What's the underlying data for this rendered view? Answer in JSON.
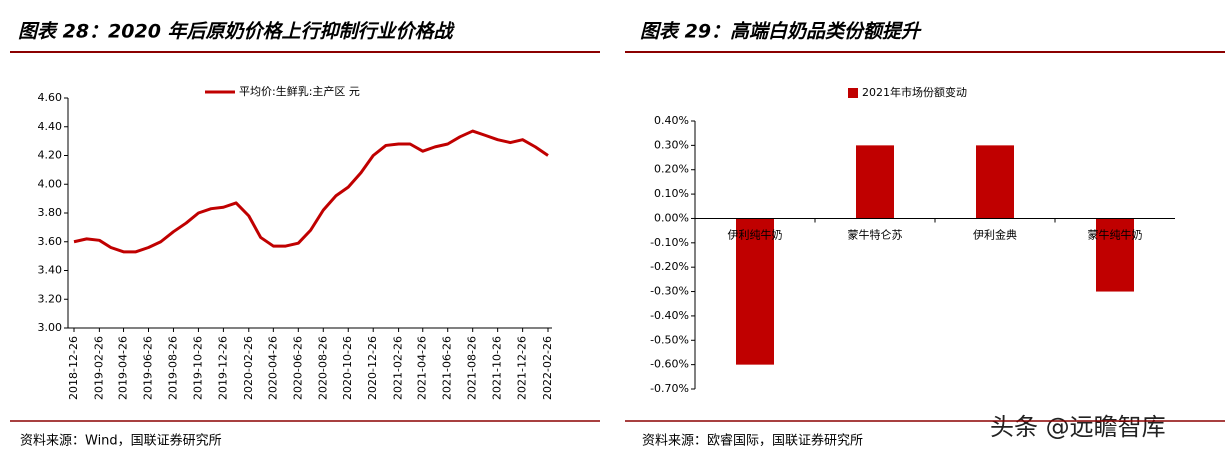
{
  "chart_data": [
    {
      "type": "line",
      "title": "图表 28：2020 年后原奶价格上行抑制行业价格战",
      "source": "资料来源：Wind，国联证券研究所",
      "x": [
        "2018-12-26",
        "2019-01-26",
        "2019-02-26",
        "2019-03-26",
        "2019-04-26",
        "2019-05-26",
        "2019-06-26",
        "2019-07-26",
        "2019-08-26",
        "2019-09-26",
        "2019-10-26",
        "2019-11-26",
        "2019-12-26",
        "2020-01-26",
        "2020-02-26",
        "2020-03-26",
        "2020-04-26",
        "2020-05-26",
        "2020-06-26",
        "2020-07-26",
        "2020-08-26",
        "2020-09-26",
        "2020-10-26",
        "2020-11-26",
        "2020-12-26",
        "2021-01-26",
        "2021-02-26",
        "2021-03-26",
        "2021-04-26",
        "2021-05-26",
        "2021-06-26",
        "2021-07-26",
        "2021-08-26",
        "2021-09-26",
        "2021-10-26",
        "2021-11-26",
        "2021-12-26",
        "2022-01-26",
        "2022-02-26"
      ],
      "series": [
        {
          "name": "平均价:生鲜乳:主产区  元",
          "color": "#c00000",
          "values": [
            3.6,
            3.62,
            3.61,
            3.56,
            3.53,
            3.53,
            3.56,
            3.6,
            3.67,
            3.73,
            3.8,
            3.83,
            3.84,
            3.87,
            3.78,
            3.63,
            3.57,
            3.57,
            3.59,
            3.68,
            3.82,
            3.92,
            3.98,
            4.08,
            4.2,
            4.27,
            4.28,
            4.28,
            4.23,
            4.26,
            4.28,
            4.33,
            4.37,
            4.34,
            4.31,
            4.29,
            4.31,
            4.26,
            4.2
          ]
        }
      ],
      "xticks": [
        "2018-12-26",
        "2019-02-26",
        "2019-04-26",
        "2019-06-26",
        "2019-08-26",
        "2019-10-26",
        "2019-12-26",
        "2020-02-26",
        "2020-04-26",
        "2020-06-26",
        "2020-08-26",
        "2020-10-26",
        "2020-12-26",
        "2021-02-26",
        "2021-04-26",
        "2021-06-26",
        "2021-08-26",
        "2021-10-26",
        "2021-12-26",
        "2022-02-26"
      ],
      "ylim": [
        3.0,
        4.6
      ],
      "yticks": [
        {
          "value": 3.0,
          "label": "3.00"
        },
        {
          "value": 3.2,
          "label": "3.20"
        },
        {
          "value": 3.4,
          "label": "3.40"
        },
        {
          "value": 3.6,
          "label": "3.60"
        },
        {
          "value": 3.8,
          "label": "3.80"
        },
        {
          "value": 4.0,
          "label": "4.00"
        },
        {
          "value": 4.2,
          "label": "4.20"
        },
        {
          "value": 4.4,
          "label": "4.40"
        },
        {
          "value": 4.6,
          "label": "4.60"
        }
      ],
      "legend": "top"
    },
    {
      "type": "bar",
      "title": "图表 29：高端白奶品类份额提升",
      "source": "资料来源：欧睿国际，国联证券研究所",
      "categories": [
        "伊利纯牛奶",
        "蒙牛特仑苏",
        "伊利金典",
        "蒙牛纯牛奶"
      ],
      "series": [
        {
          "name": "2021年市场份额变动",
          "color": "#c00000",
          "values": [
            -0.6,
            0.3,
            0.3,
            -0.3
          ]
        }
      ],
      "ylim": [
        -0.7,
        0.4
      ],
      "yticks": [
        {
          "value": 0.4,
          "label": "0.40%"
        },
        {
          "value": 0.3,
          "label": "0.30%"
        },
        {
          "value": 0.2,
          "label": "0.20%"
        },
        {
          "value": 0.1,
          "label": "0.10%"
        },
        {
          "value": 0.0,
          "label": "0.00%"
        },
        {
          "value": -0.1,
          "label": "-0.10%"
        },
        {
          "value": -0.2,
          "label": "-0.20%"
        },
        {
          "value": -0.3,
          "label": "-0.30%"
        },
        {
          "value": -0.4,
          "label": "-0.40%"
        },
        {
          "value": -0.5,
          "label": "-0.50%"
        },
        {
          "value": -0.6,
          "label": "-0.60%"
        },
        {
          "value": -0.7,
          "label": "-0.70%"
        }
      ],
      "legend": "top"
    }
  ],
  "watermark": "头条 @远瞻智库"
}
